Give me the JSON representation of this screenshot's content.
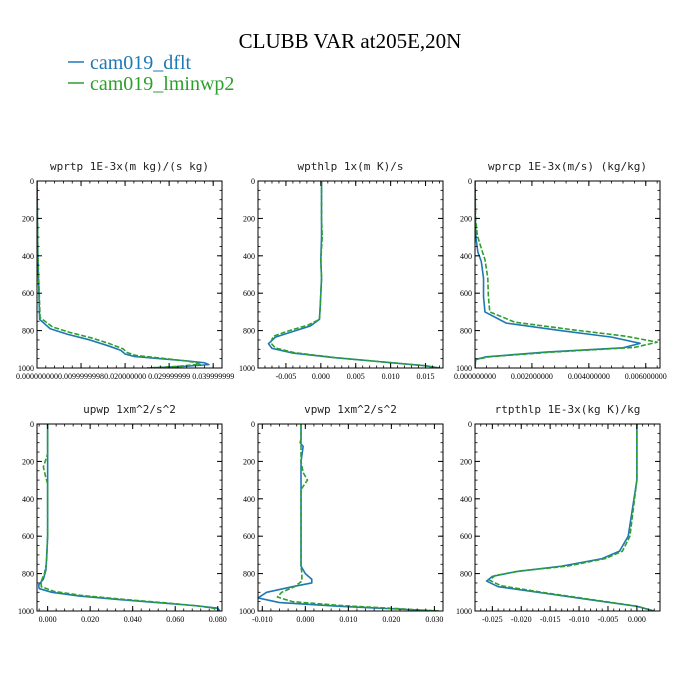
{
  "figure": {
    "title": "CLUBB VAR at205E,20N",
    "legend": [
      {
        "label": "cam019_dflt",
        "color": "#1f77b4",
        "dash": "solid"
      },
      {
        "label": "cam019_lminwp2",
        "color": "#2ca02c",
        "dash": "dashed"
      }
    ]
  },
  "chart_data": [
    {
      "type": "line",
      "title": "wprtp  1E-3x(m kg)/(s kg)",
      "xlim": [
        0,
        0.042
      ],
      "ylim": [
        1000,
        0
      ],
      "x_ticks": [
        "0.000000000",
        "0.0099999998",
        "0.020000000",
        "0.029999999",
        "0.039999999"
      ],
      "x_tick_values": [
        0,
        0.01,
        0.02,
        0.03,
        0.04
      ],
      "y_ticks": [
        "0",
        "200",
        "400",
        "600",
        "800",
        "1000"
      ],
      "y_tick_values": [
        0,
        200,
        400,
        600,
        800,
        1000
      ],
      "series": [
        {
          "name": "cam019_dflt",
          "color": "#1f77b4",
          "dashed": false,
          "x": [
            0,
            0.0002,
            0.0006,
            0.003,
            0.007,
            0.012,
            0.016,
            0.019,
            0.02,
            0.022,
            0.028,
            0.034,
            0.038,
            0.039,
            0.033,
            0.025
          ],
          "y": [
            0,
            400,
            740,
            790,
            820,
            850,
            880,
            905,
            925,
            938,
            950,
            962,
            972,
            982,
            992,
            1000
          ]
        },
        {
          "name": "cam019_lminwp2",
          "color": "#2ca02c",
          "dashed": true,
          "x": [
            0,
            0.0002,
            0.0007,
            0.0035,
            0.0075,
            0.0125,
            0.0165,
            0.0195,
            0.0205,
            0.0225,
            0.028,
            0.033,
            0.036,
            0.037,
            0.032,
            0.025
          ],
          "y": [
            0,
            400,
            730,
            780,
            810,
            840,
            870,
            897,
            918,
            933,
            947,
            960,
            970,
            980,
            991,
            1000
          ]
        }
      ]
    },
    {
      "type": "line",
      "title": "wpthlp  1x(m K)/s",
      "xlim": [
        -0.009,
        0.0175
      ],
      "ylim": [
        1000,
        0
      ],
      "x_ticks": [
        "-0.005",
        "0.000",
        "0.005",
        "0.010",
        "0.015"
      ],
      "x_tick_values": [
        -0.005,
        0,
        0.005,
        0.01,
        0.015
      ],
      "y_ticks": [
        "0",
        "200",
        "400",
        "600",
        "800",
        "1000"
      ],
      "y_tick_values": [
        0,
        200,
        400,
        600,
        800,
        1000
      ],
      "series": [
        {
          "name": "cam019_dflt",
          "color": "#1f77b4",
          "dashed": false,
          "x": [
            0.0001,
            0.0001,
            0.0001,
            0.0,
            0.0001,
            0.0,
            -0.0001,
            -0.0002,
            -0.0015,
            -0.004,
            -0.0065,
            -0.0075,
            -0.007,
            -0.004,
            0.002,
            0.009,
            0.015,
            0.017
          ],
          "y": [
            0,
            200,
            300,
            420,
            520,
            600,
            680,
            740,
            775,
            805,
            835,
            870,
            895,
            920,
            945,
            968,
            988,
            1000
          ]
        },
        {
          "name": "cam019_lminwp2",
          "color": "#2ca02c",
          "dashed": true,
          "x": [
            0.0001,
            0.0001,
            0.0002,
            0.0,
            0.0001,
            0.0,
            -0.0001,
            -0.0002,
            -0.0018,
            -0.0045,
            -0.0068,
            -0.0072,
            -0.0065,
            -0.0038,
            0.002,
            0.009,
            0.015,
            0.017
          ],
          "y": [
            0,
            200,
            300,
            420,
            520,
            600,
            680,
            740,
            770,
            800,
            830,
            865,
            893,
            918,
            944,
            968,
            988,
            1000
          ]
        }
      ]
    },
    {
      "type": "line",
      "title": "wprcp  1E-3x(m/s) (kg/kg)",
      "xlim": [
        0,
        0.0065
      ],
      "ylim": [
        1000,
        0
      ],
      "x_ticks": [
        "0.000000000",
        "0.002000000",
        "0.004000000",
        "0.006000000"
      ],
      "x_tick_values": [
        0,
        0.002,
        0.004,
        0.006
      ],
      "y_ticks": [
        "0",
        "200",
        "400",
        "600",
        "800",
        "1000"
      ],
      "y_tick_values": [
        0,
        200,
        400,
        600,
        800,
        1000
      ],
      "series": [
        {
          "name": "cam019_dflt",
          "color": "#1f77b4",
          "dashed": false,
          "x": [
            0,
            1e-05,
            3e-05,
            0.0001,
            0.00022,
            0.0003,
            0.0003,
            0.00035,
            0.0011,
            0.003,
            0.0048,
            0.0058,
            0.0052,
            0.0025,
            0.0004,
            2e-05,
            0
          ],
          "y": [
            0,
            200,
            300,
            380,
            430,
            520,
            620,
            700,
            760,
            800,
            835,
            868,
            892,
            915,
            940,
            955,
            1000
          ]
        },
        {
          "name": "cam019_lminwp2",
          "color": "#2ca02c",
          "dashed": true,
          "x": [
            0,
            2e-05,
            8e-05,
            0.00022,
            0.00035,
            0.00045,
            0.00047,
            0.00052,
            0.0014,
            0.0034,
            0.0053,
            0.0064,
            0.0056,
            0.0027,
            0.0005,
            2e-05,
            0
          ],
          "y": [
            0,
            200,
            290,
            360,
            420,
            520,
            620,
            700,
            755,
            795,
            830,
            862,
            890,
            915,
            940,
            955,
            1000
          ]
        }
      ]
    },
    {
      "type": "line",
      "title": "upwp  1xm^2/s^2",
      "xlim": [
        -0.005,
        0.082
      ],
      "ylim": [
        1000,
        0
      ],
      "x_ticks": [
        "0.000",
        "0.020",
        "0.040",
        "0.060",
        "0.080"
      ],
      "x_tick_values": [
        0,
        0.02,
        0.04,
        0.06,
        0.08
      ],
      "y_ticks": [
        "0",
        "200",
        "400",
        "600",
        "800",
        "1000"
      ],
      "y_tick_values": [
        0,
        200,
        400,
        600,
        800,
        1000
      ],
      "series": [
        {
          "name": "cam019_dflt",
          "color": "#1f77b4",
          "dashed": false,
          "x": [
            0.0,
            0.0,
            0.0,
            0.0,
            -0.0005,
            -0.0008,
            -0.002,
            -0.0042,
            -0.004,
            0.002,
            0.015,
            0.035,
            0.055,
            0.07,
            0.08,
            0.081
          ],
          "y": [
            0,
            200,
            400,
            600,
            720,
            780,
            830,
            860,
            880,
            900,
            920,
            940,
            958,
            972,
            985,
            1000
          ]
        },
        {
          "name": "cam019_lminwp2",
          "color": "#2ca02c",
          "dashed": true,
          "x": [
            0.0,
            0.0,
            -0.002,
            -0.001,
            0.0,
            0.0,
            -0.0005,
            -0.0015,
            -0.003,
            -0.003,
            0.003,
            0.016,
            0.036,
            0.056,
            0.07,
            0.078,
            0.08
          ],
          "y": [
            0,
            160,
            230,
            280,
            320,
            600,
            740,
            800,
            840,
            870,
            895,
            917,
            938,
            957,
            972,
            985,
            1000
          ]
        }
      ]
    },
    {
      "type": "line",
      "title": "vpwp  1xm^2/s^2",
      "xlim": [
        -0.011,
        0.032
      ],
      "ylim": [
        1000,
        0
      ],
      "x_ticks": [
        "-0.010",
        "0.000",
        "0.010",
        "0.020",
        "0.030"
      ],
      "x_tick_values": [
        -0.01,
        0,
        0.01,
        0.02,
        0.03
      ],
      "y_ticks": [
        "0",
        "200",
        "400",
        "600",
        "800",
        "1000"
      ],
      "y_tick_values": [
        0,
        200,
        400,
        600,
        800,
        1000
      ],
      "series": [
        {
          "name": "cam019_dflt",
          "color": "#1f77b4",
          "dashed": false,
          "x": [
            -0.001,
            -0.001,
            -0.0012,
            -0.0005,
            -0.001,
            -0.001,
            -0.001,
            -0.001,
            0.0,
            0.0015,
            0.0015,
            -0.003,
            -0.009,
            -0.011,
            -0.006,
            0.008,
            0.022,
            0.031
          ],
          "y": [
            0,
            80,
            100,
            120,
            200,
            400,
            600,
            760,
            800,
            830,
            850,
            870,
            900,
            930,
            955,
            975,
            990,
            1000
          ]
        },
        {
          "name": "cam019_lminwp2",
          "color": "#2ca02c",
          "dashed": true,
          "x": [
            -0.001,
            -0.001,
            -0.0005,
            0.0005,
            -0.001,
            -0.001,
            -0.001,
            -0.0008,
            -0.0008,
            -0.0025,
            -0.0055,
            -0.0065,
            -0.003,
            0.009,
            0.022,
            0.031
          ],
          "y": [
            0,
            200,
            260,
            300,
            350,
            600,
            760,
            800,
            840,
            870,
            900,
            925,
            950,
            972,
            988,
            1000
          ]
        }
      ]
    },
    {
      "type": "line",
      "title": "rtpthlp  1E-3x(kg K)/kg",
      "xlim": [
        -0.028,
        0.004
      ],
      "ylim": [
        1000,
        0
      ],
      "x_ticks": [
        "-0.025",
        "-0.020",
        "-0.015",
        "-0.010",
        "-0.005",
        "0.000"
      ],
      "x_tick_values": [
        -0.025,
        -0.02,
        -0.015,
        -0.01,
        -0.005,
        0
      ],
      "y_ticks": [
        "0",
        "200",
        "400",
        "600",
        "800",
        "1000"
      ],
      "y_tick_values": [
        0,
        200,
        400,
        600,
        800,
        1000
      ],
      "series": [
        {
          "name": "cam019_dflt",
          "color": "#1f77b4",
          "dashed": false,
          "x": [
            0.0,
            0.0,
            0.0,
            -0.0005,
            -0.001,
            -0.0015,
            -0.003,
            -0.006,
            -0.013,
            -0.021,
            -0.025,
            -0.026,
            -0.024,
            -0.016,
            -0.008,
            0.0,
            0.003
          ],
          "y": [
            0,
            200,
            300,
            400,
            500,
            600,
            680,
            720,
            760,
            790,
            815,
            840,
            870,
            905,
            940,
            975,
            1000
          ]
        },
        {
          "name": "cam019_lminwp2",
          "color": "#2ca02c",
          "dashed": true,
          "x": [
            0.0,
            0.0,
            0.0,
            -0.0004,
            -0.0008,
            -0.0012,
            -0.0025,
            -0.0055,
            -0.012,
            -0.02,
            -0.0245,
            -0.0255,
            -0.0235,
            -0.016,
            -0.008,
            0.0,
            0.003
          ],
          "y": [
            0,
            200,
            300,
            400,
            500,
            600,
            680,
            720,
            760,
            785,
            810,
            835,
            865,
            902,
            938,
            974,
            1000
          ]
        }
      ]
    }
  ]
}
